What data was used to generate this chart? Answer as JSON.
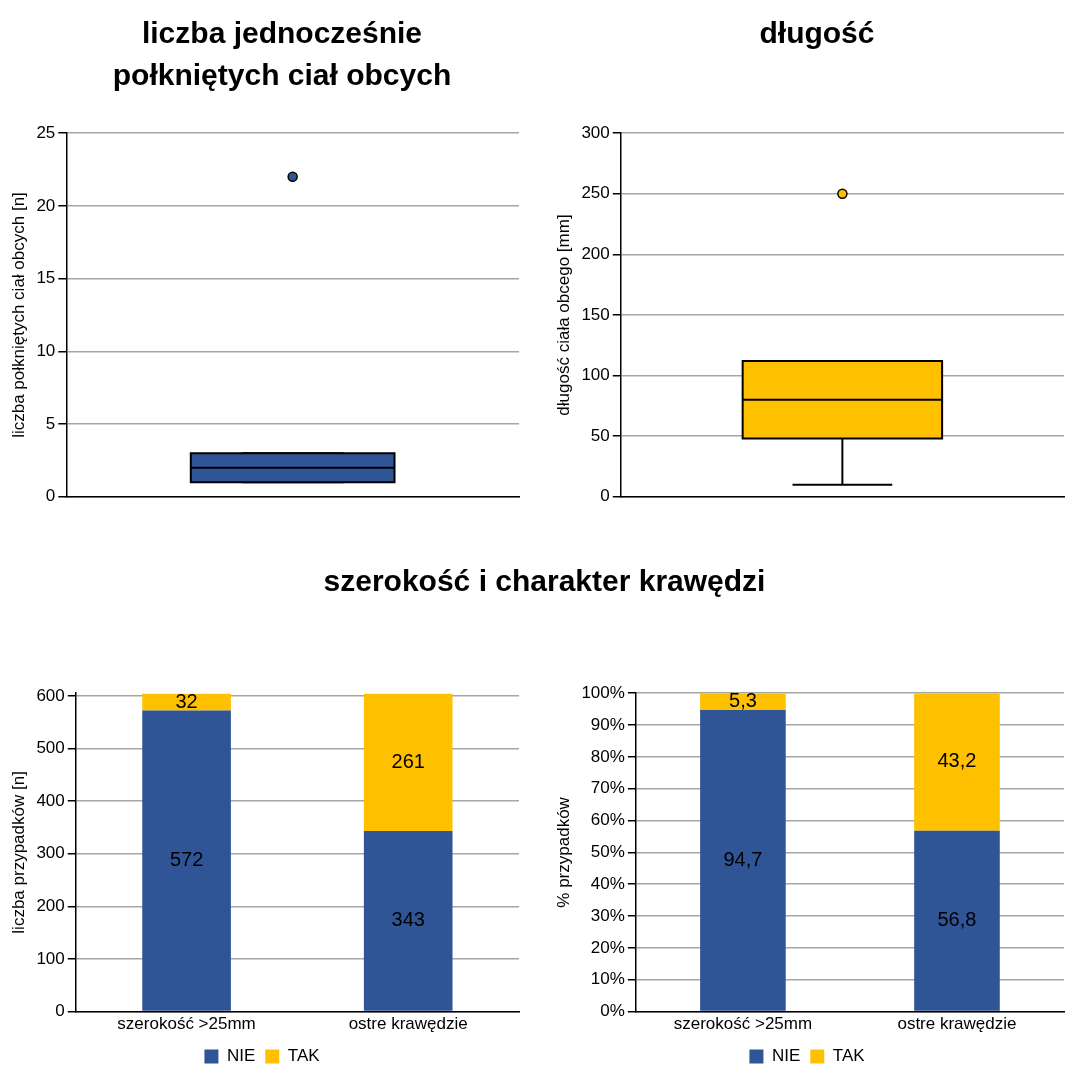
{
  "chart_data": [
    {
      "type": "box",
      "title": "liczba jednocześnie połkniętych ciał obcych",
      "ylabel": "liczba połkniętych ciał obcych [n]",
      "categories": [
        null
      ],
      "tick_labels": "y",
      "grid": "y",
      "ylim": [
        0,
        25
      ],
      "yticks": [
        0,
        5,
        10,
        15,
        20,
        25
      ],
      "series": [
        {
          "color": "#2f5597",
          "boxes": [
            {
              "low": 1,
              "q1": 1,
              "median": 2,
              "q3": 3,
              "high": 3,
              "outliers": [
                22
              ]
            }
          ]
        }
      ]
    },
    {
      "type": "box",
      "title": "długość",
      "ylabel": "długość ciała obcego [mm]",
      "categories": [
        null
      ],
      "tick_labels": "y",
      "grid": "y",
      "ylim": [
        0,
        300
      ],
      "yticks": [
        0,
        50,
        100,
        150,
        200,
        250,
        300
      ],
      "series": [
        {
          "color": "#ffc000",
          "boxes": [
            {
              "low": 10,
              "q1": 48,
              "median": 80,
              "q3": 112,
              "high": 112,
              "outliers": [
                250
              ]
            }
          ]
        }
      ]
    },
    {
      "type": "bar",
      "title": "szerokość i charakter krawędzi",
      "ylabel": "liczba przypadków [n]",
      "categories": [
        "szerokość >25mm",
        "ostre krawędzie"
      ],
      "stacked": true,
      "grid": "y",
      "legend": "bottom",
      "data_labels": true,
      "ylim": [
        0,
        605
      ],
      "yticks": [
        0,
        100,
        200,
        300,
        400,
        500,
        600
      ],
      "series": [
        {
          "name": "NIE",
          "color": "#2f5597",
          "values": [
            572,
            343
          ]
        },
        {
          "name": "TAK",
          "color": "#ffc000",
          "values": [
            32,
            261
          ]
        }
      ]
    },
    {
      "type": "bar",
      "ylabel": "% przypadków",
      "categories": [
        "szerokość >25mm",
        "ostre krawędzie"
      ],
      "stacked": true,
      "grid": "y",
      "legend": "bottom",
      "ylim": [
        0,
        100
      ],
      "yticks": [
        {
          "value": 0,
          "label": "0%"
        },
        {
          "value": 10,
          "label": "10%"
        },
        {
          "value": 20,
          "label": "20%"
        },
        {
          "value": 30,
          "label": "30%"
        },
        {
          "value": 40,
          "label": "40%"
        },
        {
          "value": 50,
          "label": "50%"
        },
        {
          "value": 60,
          "label": "60%"
        },
        {
          "value": 70,
          "label": "70%"
        },
        {
          "value": 80,
          "label": "80%"
        },
        {
          "value": 90,
          "label": "90%"
        },
        {
          "value": 100,
          "label": "100%"
        }
      ],
      "series": [
        {
          "name": "NIE",
          "color": "#2f5597",
          "values": [
            94.7,
            56.8
          ],
          "value_labels": [
            "94,7",
            "56,8"
          ]
        },
        {
          "name": "TAK",
          "color": "#ffc000",
          "values": [
            5.3,
            43.2
          ],
          "value_labels": [
            "5,3",
            "43,2"
          ]
        }
      ]
    }
  ]
}
